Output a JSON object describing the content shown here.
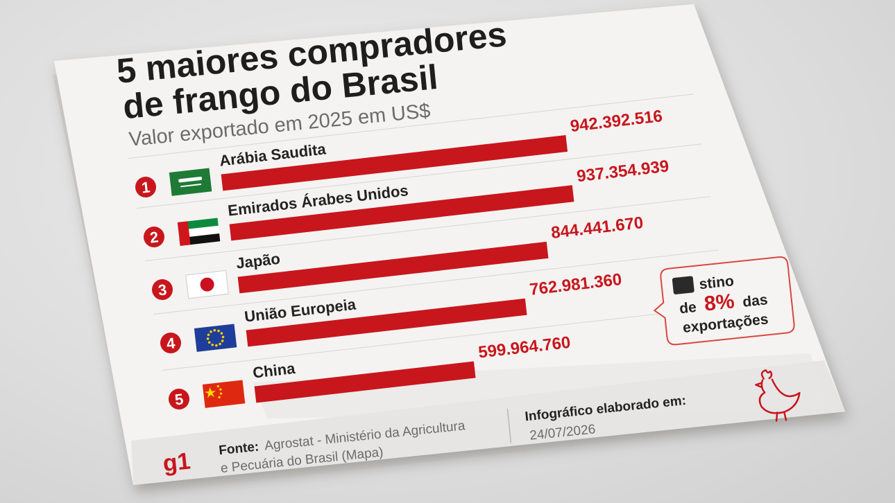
{
  "title_line1": "5 maiores compradores",
  "title_line2": "de frango do Brasil",
  "subtitle": "Valor exportado em 2025 em US$",
  "chart_data": {
    "type": "bar",
    "orientation": "horizontal",
    "title": "5 maiores compradores de frango do Brasil",
    "subtitle": "Valor exportado em 2025 em US$",
    "categories": [
      "Arábia Saudita",
      "Emirados Árabes Unidos",
      "Japão",
      "União Europeia",
      "China"
    ],
    "ranks": [
      "1",
      "2",
      "3",
      "4",
      "5"
    ],
    "value_labels": [
      "942.392.516",
      "937.354.939",
      "844.441.670",
      "762.981.360",
      "599.964.760"
    ],
    "values": [
      942392516,
      937354939,
      844441670,
      762981360,
      599964760
    ],
    "flags": [
      "saudi-arabia-flag-icon",
      "uae-flag-icon",
      "japan-flag-icon",
      "eu-flag-icon",
      "china-flag-icon"
    ],
    "bar_color": "#c8161d"
  },
  "callout": {
    "line1": "stino",
    "line2_prefix": "de",
    "highlight": "8%",
    "line2_suffix": "das",
    "line3": "exportações"
  },
  "footer": {
    "logo": "g1",
    "source_label": "Fonte:",
    "source_text": "Agrostat - Ministério da Agricultura",
    "source_text2": "e Pecuária do Brasil (Mapa)",
    "made_label": "Infográfico elaborado em:",
    "made_date": "24/07/2026"
  },
  "colors": {
    "accent": "#c8161d",
    "text": "#222222",
    "muted": "#6b6b6b",
    "card": "#f4f3f1",
    "footer": "#e6e5e3"
  }
}
